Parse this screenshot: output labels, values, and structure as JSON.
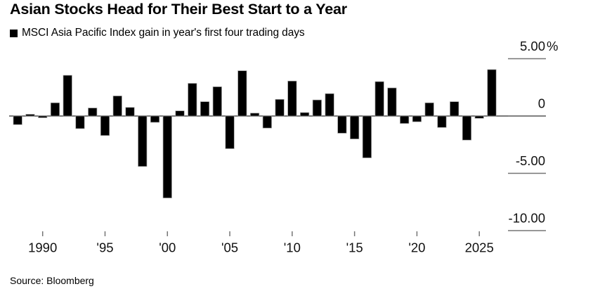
{
  "header": {
    "title": "Asian Stocks Head for Their Best Start to a Year",
    "legend_label": "MSCI Asia Pacific Index gain in year's first four trading days",
    "legend_marker_color": "#000000"
  },
  "footer": {
    "source": "Source: Bloomberg"
  },
  "chart_data": {
    "type": "bar",
    "title": "Asian Stocks Head for Their Best Start to a Year",
    "series_name": "MSCI Asia Pacific Index gain in year's first four trading days",
    "unit": "%",
    "categories": [
      1988,
      1989,
      1990,
      1991,
      1992,
      1993,
      1994,
      1995,
      1996,
      1997,
      1998,
      1999,
      2000,
      2001,
      2002,
      2003,
      2004,
      2005,
      2006,
      2007,
      2008,
      2009,
      2010,
      2011,
      2012,
      2013,
      2014,
      2015,
      2016,
      2017,
      2018,
      2019,
      2020,
      2021,
      2022,
      2023,
      2024,
      2025,
      2026
    ],
    "values": [
      -0.75,
      0.15,
      -0.15,
      1.15,
      3.55,
      -1.1,
      0.7,
      -1.7,
      1.75,
      0.75,
      -4.4,
      -0.55,
      -7.15,
      0.45,
      2.85,
      1.25,
      2.55,
      -2.85,
      3.95,
      0.25,
      -1.05,
      1.45,
      3.05,
      0.3,
      1.4,
      1.95,
      -1.5,
      -2.0,
      -3.65,
      3.0,
      2.45,
      -0.65,
      -0.5,
      1.15,
      -1.0,
      1.25,
      -2.1,
      -0.2,
      4.05
    ],
    "ylim": [
      -10,
      5
    ],
    "y_ticks": [
      {
        "value": 5,
        "label": "5.00",
        "suffix": "%"
      },
      {
        "value": 0,
        "label": "0",
        "suffix": ""
      },
      {
        "value": -5,
        "label": "-5.00",
        "suffix": ""
      },
      {
        "value": -10,
        "label": "-10.00",
        "suffix": ""
      }
    ],
    "x_ticks": [
      {
        "year": 1990,
        "label": "1990"
      },
      {
        "year": 1995,
        "label": "'95"
      },
      {
        "year": 2000,
        "label": "'00"
      },
      {
        "year": 2005,
        "label": "'05"
      },
      {
        "year": 2010,
        "label": "'10"
      },
      {
        "year": 2015,
        "label": "'15"
      },
      {
        "year": 2020,
        "label": "'20"
      },
      {
        "year": 2025,
        "label": "2025"
      }
    ],
    "bar_color": "#000000",
    "bar_edge_color": "#9b9b9b",
    "axis_line_color": "#4d4d4d",
    "tick_line_color": "#757575",
    "label_color": "#111111",
    "grid": false,
    "legend_position": "top-left"
  }
}
